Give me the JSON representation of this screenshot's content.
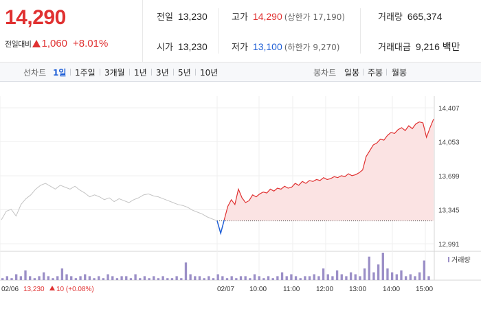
{
  "price": {
    "current": "14,290",
    "change_label": "전일대비",
    "change_amount": "1,060",
    "change_percent": "+8.01%"
  },
  "stats": {
    "prev_close": {
      "label": "전일",
      "value": "13,230"
    },
    "high": {
      "label": "고가",
      "value": "14,290",
      "sub": "(상한가 17,190)"
    },
    "volume": {
      "label": "거래량",
      "value": "665,374"
    },
    "open": {
      "label": "시가",
      "value": "13,230"
    },
    "low": {
      "label": "저가",
      "value": "13,100",
      "sub": "(하한가 9,270)"
    },
    "trade_value": {
      "label": "거래대금",
      "value": "9,216 백만"
    }
  },
  "periods": {
    "line_label": "선차트",
    "line_options": [
      "1일",
      "1주일",
      "3개월",
      "1년",
      "3년",
      "5년",
      "10년"
    ],
    "line_active": "1일",
    "candle_label": "봉차트",
    "candle_options": [
      "일봉",
      "주봉",
      "월봉"
    ]
  },
  "colors": {
    "up": "#e03131",
    "down": "#1f5fd6",
    "prev_day_line": "#c4c4c4",
    "fill": "#fbe3e3",
    "volume": "#9b8fc7"
  },
  "chart_data": {
    "type": "line",
    "y_ticks": [
      "14,407",
      "14,053",
      "13,699",
      "13,345",
      "12,991"
    ],
    "ylim": [
      12991,
      14407
    ],
    "x_labels": [
      "02/06",
      "02/07",
      "10:00",
      "11:00",
      "12:00",
      "13:00",
      "14:00",
      "15:00"
    ],
    "prev_day": {
      "label": "02/06",
      "price": "13,230",
      "change": "10",
      "change_pct": "(+0.08%)",
      "values": [
        13240,
        13330,
        13350,
        13280,
        13400,
        13460,
        13500,
        13560,
        13600,
        13620,
        13590,
        13560,
        13600,
        13580,
        13560,
        13590,
        13550,
        13520,
        13480,
        13500,
        13480,
        13450,
        13470,
        13430,
        13460,
        13440,
        13420,
        13450,
        13470,
        13500,
        13510,
        13490,
        13480,
        13460,
        13440,
        13420,
        13400,
        13390,
        13370,
        13340,
        13320,
        13300,
        13270,
        13250,
        13230
      ]
    },
    "today": {
      "label": "02/07",
      "open": 13230,
      "values": [
        13230,
        13100,
        13240,
        13380,
        13450,
        13400,
        13560,
        13470,
        13420,
        13440,
        13500,
        13480,
        13510,
        13530,
        13520,
        13560,
        13540,
        13570,
        13560,
        13590,
        13570,
        13580,
        13620,
        13600,
        13640,
        13620,
        13650,
        13640,
        13660,
        13650,
        13680,
        13660,
        13670,
        13690,
        13680,
        13700,
        13690,
        13720,
        13700,
        13710,
        13730,
        13760,
        13900,
        13960,
        14020,
        14040,
        14080,
        14070,
        14120,
        14150,
        14140,
        14180,
        14200,
        14170,
        14220,
        14190,
        14240,
        14260,
        14250,
        14100,
        14200,
        14290
      ]
    },
    "volume_label": "거래량",
    "volume": [
      1,
      2,
      1,
      3,
      2,
      5,
      2,
      1,
      2,
      4,
      2,
      1,
      2,
      6,
      3,
      2,
      1,
      2,
      3,
      2,
      1,
      2,
      1,
      3,
      2,
      1,
      2,
      2,
      1,
      3,
      1,
      2,
      1,
      2,
      1,
      2,
      1,
      1,
      2,
      1,
      9,
      3,
      2,
      2,
      1,
      2,
      1,
      3,
      2,
      1,
      2,
      1,
      2,
      2,
      1,
      3,
      2,
      1,
      2,
      1,
      2,
      4,
      2,
      3,
      2,
      1,
      2,
      2,
      3,
      2,
      6,
      3,
      2,
      5,
      3,
      2,
      4,
      3,
      2,
      6,
      12,
      4,
      8,
      14,
      6,
      4,
      3,
      5,
      2,
      3,
      2,
      4,
      10,
      2
    ]
  }
}
